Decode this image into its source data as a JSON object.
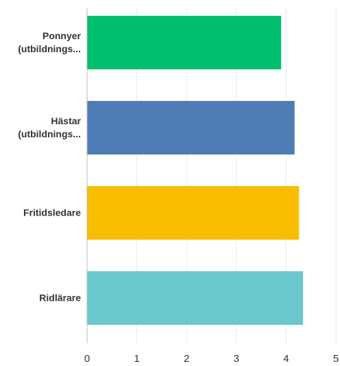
{
  "chart_data": {
    "type": "bar",
    "orientation": "horizontal",
    "categories": [
      "Ponnyer (utbildnings...",
      "Hästar (utbildnings...",
      "Fritidsledare",
      "Ridlärare"
    ],
    "values": [
      3.9,
      4.17,
      4.26,
      4.34
    ],
    "colors": [
      "#00bf6f",
      "#507cb6",
      "#f9be00",
      "#6bc8cd"
    ],
    "xlim": [
      0,
      5
    ],
    "xticks": [
      0,
      1,
      2,
      3,
      4,
      5
    ],
    "grid": true
  }
}
